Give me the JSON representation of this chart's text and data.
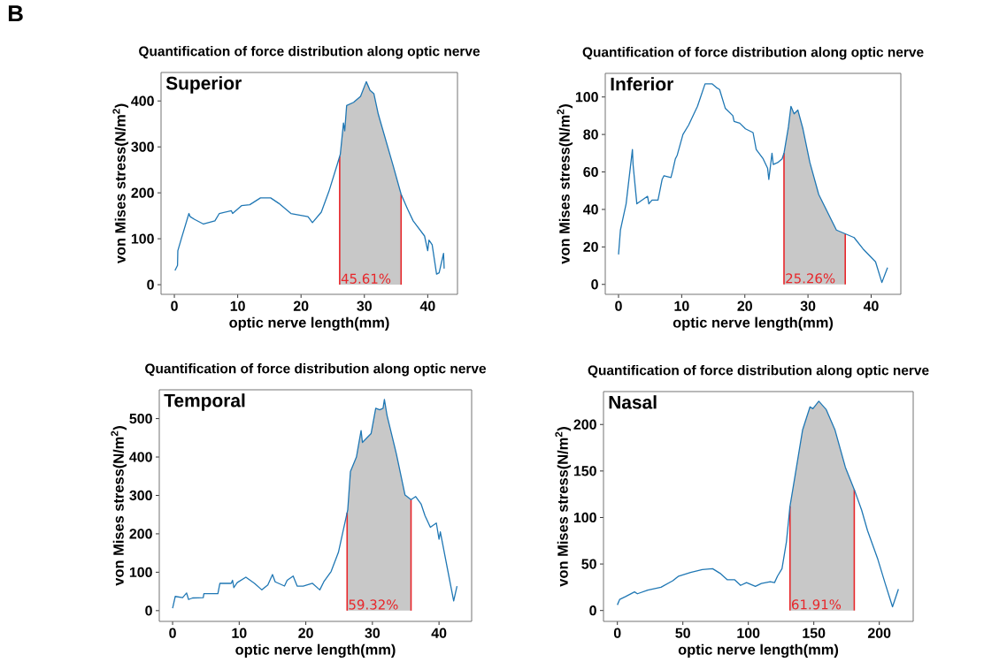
{
  "chart_data": [
    {
      "type": "line",
      "title": "Quantification of force distribution along optic nerve",
      "xlabel": "optic nerve length(mm)",
      "ylabel": "von Mises stress(N/m$^{2}$)",
      "annotations": [
        "Superior",
        {
          "text": "45.61%",
          "x": 26.1,
          "y": 0
        },
        "B"
      ],
      "series": [
        {
          "type": "line",
          "color": "#1f77b4",
          "x": [
            0.1,
            0.5,
            0.55,
            1.1,
            2.3,
            2.5,
            3.2,
            4.6,
            6.4,
            7.1,
            9.0,
            9.2,
            10.6,
            11.9,
            13.6,
            15.2,
            16.5,
            18.4,
            21.1,
            21.8,
            23.2,
            24.4,
            25.7,
            26.2,
            26.7,
            26.9,
            27.2,
            28.3,
            29.4,
            30.3,
            30.9,
            31.5,
            32.2,
            34.5,
            35.8,
            36.8,
            37.7,
            39.5,
            40.0,
            40.2,
            40.7,
            41.4,
            41.8,
            42.5,
            42.6
          ],
          "values": [
            31,
            42,
            74,
            100,
            155,
            148,
            142,
            132,
            139,
            155,
            161,
            155,
            172,
            174,
            189,
            189,
            177,
            155,
            148,
            135,
            158,
            203,
            261,
            284,
            352,
            335,
            390,
            397,
            410,
            442,
            423,
            416,
            371,
            261,
            197,
            165,
            139,
            106,
            74,
            97,
            87,
            23,
            26,
            68,
            35
          ]
        },
        {
          "type": "area",
          "color": "#c8c8c8",
          "x": [
            26.1,
            26.2,
            26.7,
            26.9,
            27.2,
            28.3,
            29.4,
            30.3,
            30.9,
            31.5,
            32.2,
            34.5,
            35.8
          ],
          "values": [
            279,
            284,
            352,
            335,
            390,
            397,
            410,
            442,
            423,
            416,
            371,
            261,
            197
          ]
        }
      ],
      "xlim": [
        -2.1,
        44.7
      ],
      "ylim": [
        -21,
        462
      ],
      "xticks": [
        0,
        10,
        20,
        30,
        40
      ],
      "yticks": [
        0,
        100,
        200,
        300,
        400
      ],
      "ref_lines": [
        {
          "axis": "x",
          "value": 26.1,
          "color": "#e8262a"
        },
        {
          "axis": "x",
          "value": 35.8,
          "color": "#e8262a"
        }
      ]
    },
    {
      "type": "line",
      "title": "Quantification of force distribution along optic nerve",
      "xlabel": "optic nerve length(mm)",
      "ylabel": "von Mises stress(N/m$^{2}$)",
      "annotations": [
        "Inferior",
        {
          "text": "25.26%",
          "x": 26.2,
          "y": 0
        }
      ],
      "series": [
        {
          "type": "line",
          "color": "#1f77b4",
          "x": [
            0,
            0.3,
            1.2,
            2.2,
            2.3,
            2.9,
            4.6,
            4.8,
            5.3,
            6.25,
            6.9,
            7.2,
            8.3,
            8.6,
            9.0,
            9.3,
            10.2,
            11.1,
            12.5,
            13.7,
            14.8,
            15.5,
            16.0,
            16.9,
            18.1,
            18.3,
            19.2,
            20.1,
            21.3,
            21.8,
            22.9,
            23.6,
            23.8,
            24.3,
            24.5,
            25.2,
            25.9,
            26.2,
            26.9,
            27.3,
            27.8,
            28.4,
            29.2,
            30.3,
            31.7,
            34.5,
            35.9,
            37.3,
            38.7,
            40.7,
            41.7,
            42.6
          ],
          "values": [
            16,
            29,
            43,
            72,
            64,
            43,
            47,
            43,
            45,
            45,
            56,
            58,
            57,
            61,
            67,
            69,
            80,
            85,
            95,
            107,
            107,
            105,
            104,
            94,
            90,
            87,
            86,
            83,
            81,
            72,
            67,
            62,
            56,
            70,
            64,
            65,
            67,
            70,
            84,
            95,
            91,
            93,
            83,
            65,
            48,
            29,
            27,
            25,
            19,
            12,
            1,
            9
          ]
        },
        {
          "type": "area",
          "color": "#c8c8c8",
          "x": [
            26.2,
            26.9,
            27.3,
            27.8,
            28.4,
            29.2,
            30.3,
            31.7,
            34.5,
            35.9
          ],
          "values": [
            70,
            84,
            95,
            91,
            93,
            83,
            65,
            48,
            29,
            27
          ]
        }
      ],
      "xlim": [
        -2.1,
        44.7
      ],
      "ylim": [
        -5.3,
        112.6
      ],
      "xticks": [
        0,
        10,
        20,
        30,
        40
      ],
      "yticks": [
        0,
        20,
        40,
        60,
        80,
        100
      ],
      "ref_lines": [
        {
          "axis": "x",
          "value": 26.2,
          "color": "#e8262a"
        },
        {
          "axis": "x",
          "value": 35.9,
          "color": "#e8262a"
        }
      ]
    },
    {
      "type": "line",
      "title": "Quantification of force distribution along optic nerve",
      "xlabel": "optic nerve length(mm)",
      "ylabel": "von Mises stress(N/m$^{2}$)",
      "annotations": [
        "Temporal",
        {
          "text": "59.32%",
          "x": 26.2,
          "y": 0
        }
      ],
      "series": [
        {
          "type": "line",
          "color": "#1f77b4",
          "x": [
            0,
            0.4,
            1.5,
            2.1,
            2.4,
            3.0,
            4.6,
            4.7,
            6.8,
            7.1,
            8.8,
            9.0,
            9.2,
            9.7,
            11.0,
            12.3,
            13.4,
            14.3,
            15.0,
            15.4,
            16.8,
            17.2,
            18.1,
            18.7,
            19.6,
            21.0,
            22.1,
            22.7,
            23.8,
            24.9,
            26.3,
            26.7,
            27.6,
            28.3,
            28.5,
            29.8,
            30.5,
            31.1,
            31.6,
            31.8,
            32.2,
            33.6,
            34.9,
            35.8,
            36.5,
            37.3,
            37.9,
            38.7,
            39.6,
            40.0,
            40.2,
            42.2,
            42.7
          ],
          "values": [
            6,
            37,
            34,
            46,
            29,
            33,
            34,
            44,
            44,
            71,
            71,
            79,
            60,
            73,
            87,
            71,
            54,
            67,
            94,
            75,
            64,
            79,
            90,
            64,
            64,
            71,
            54,
            75,
            102,
            152,
            263,
            362,
            400,
            469,
            438,
            461,
            527,
            523,
            527,
            550,
            508,
            408,
            301,
            289,
            297,
            278,
            247,
            217,
            228,
            186,
            205,
            25,
            64
          ]
        },
        {
          "type": "area",
          "color": "#c8c8c8",
          "x": [
            26.2,
            26.3,
            26.7,
            27.6,
            28.3,
            28.5,
            29.8,
            30.5,
            31.1,
            31.6,
            31.8,
            32.2,
            33.6,
            34.9,
            35.8
          ],
          "values": [
            255,
            263,
            362,
            400,
            469,
            438,
            461,
            527,
            523,
            527,
            550,
            508,
            408,
            301,
            289
          ]
        }
      ],
      "xlim": [
        -2.0,
        44.9
      ],
      "ylim": [
        -28,
        575
      ],
      "xticks": [
        0,
        10,
        20,
        30,
        40
      ],
      "yticks": [
        0,
        100,
        200,
        300,
        400,
        500
      ],
      "ref_lines": [
        {
          "axis": "x",
          "value": 26.2,
          "color": "#e8262a"
        },
        {
          "axis": "x",
          "value": 35.8,
          "color": "#e8262a"
        }
      ]
    },
    {
      "type": "line",
      "title": "Quantification of force distribution along optic nerve",
      "xlabel": "optic nerve length(mm)",
      "ylabel": "von Mises stress(N/m$^{2}$)",
      "annotations": [
        "Nasal",
        {
          "text": "61.91%",
          "x": 131.8,
          "y": 0
        }
      ],
      "series": [
        {
          "type": "line",
          "color": "#1f77b4",
          "x": [
            0,
            1.8,
            6.3,
            13.1,
            15.3,
            23.2,
            33.3,
            42.3,
            46.8,
            55.9,
            64.9,
            72.7,
            78.4,
            84.0,
            89.6,
            94.1,
            98.6,
            105.4,
            109.9,
            116.7,
            120,
            122.3,
            125.7,
            129.1,
            131.8,
            135.8,
            141.4,
            147.1,
            149.3,
            153.8,
            159.5,
            166.2,
            174.1,
            180.9,
            186.5,
            191.0,
            198.9,
            204.5,
            210.1,
            214.6
          ],
          "values": [
            6,
            12,
            15,
            20,
            18,
            22,
            25,
            32,
            37,
            41,
            44,
            45,
            40,
            33,
            33,
            27,
            30,
            26,
            29,
            31,
            30,
            37,
            45,
            74,
            112,
            146,
            194,
            219,
            217,
            225,
            216,
            194,
            154,
            130,
            108,
            86,
            55,
            29,
            4,
            23
          ]
        },
        {
          "type": "area",
          "color": "#c8c8c8",
          "x": [
            131.8,
            135.8,
            141.4,
            147.1,
            149.3,
            153.8,
            159.5,
            166.2,
            174.1,
            180.9
          ],
          "values": [
            112,
            146,
            194,
            219,
            217,
            225,
            216,
            194,
            154,
            130
          ]
        }
      ],
      "xlim": [
        -10.6,
        225.9
      ],
      "ylim": [
        -11.7,
        235.4
      ],
      "xticks": [
        0,
        50,
        100,
        150,
        200
      ],
      "yticks": [
        0,
        50,
        100,
        150,
        200
      ],
      "ref_lines": [
        {
          "axis": "x",
          "value": 131.8,
          "color": "#e8262a"
        },
        {
          "axis": "x",
          "value": 180.9,
          "color": "#e8262a"
        }
      ]
    }
  ]
}
